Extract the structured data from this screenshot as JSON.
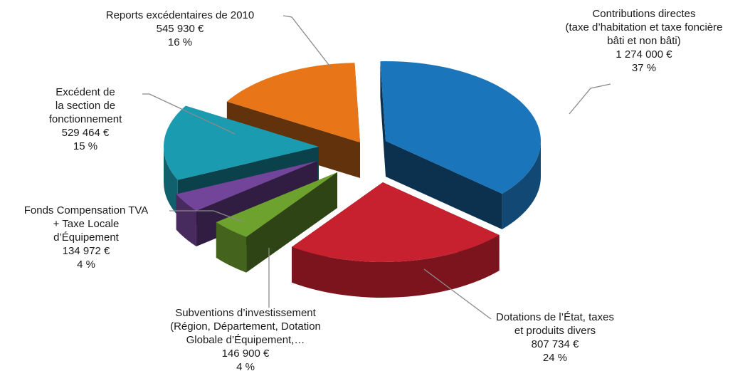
{
  "chart_data": {
    "type": "pie",
    "style": "3d-exploded",
    "slices": [
      {
        "name": "Contributions directes (taxe d'habitation et taxe foncière bâti et non bâti)",
        "label_lines": [
          "Contributions directes",
          "(taxe d’habitation et taxe foncière",
          "bâti et non bâti)"
        ],
        "amount": "1 274 000 €",
        "value": 1274000,
        "percent": "37 %",
        "color": "#1b75bb"
      },
      {
        "name": "Dotations de l'État, taxes et produits divers",
        "label_lines": [
          "Dotations de l’État, taxes",
          "et produits divers"
        ],
        "amount": "807 734 €",
        "value": 807734,
        "percent": "24 %",
        "color": "#c7202f"
      },
      {
        "name": "Subventions d'investissement (Région, Département, Dotation Globale d'Équipement,…",
        "label_lines": [
          "Subventions d’investissement",
          "(Région, Département, Dotation",
          "Globale d’Équipement,…"
        ],
        "amount": "146 900 €",
        "value": 146900,
        "percent": "4 %",
        "color": "#6ea22f"
      },
      {
        "name": "Fonds Compensation TVA + Taxe Locale d'Équipement",
        "label_lines": [
          "Fonds Compensation TVA",
          "+ Taxe Locale",
          "d’Équipement"
        ],
        "amount": "134 972 €",
        "value": 134972,
        "percent": "4 %",
        "color": "#73459a"
      },
      {
        "name": "Excédent de la section de fonctionnement",
        "label_lines": [
          "Excédent de",
          "la section de",
          "fonctionnement"
        ],
        "amount": "529 464 €",
        "value": 529464,
        "percent": "15 %",
        "color": "#1b9bb0"
      },
      {
        "name": "Reports excédentaires de 2010",
        "label_lines": [
          "Reports excédentaires de 2010"
        ],
        "amount": "545 930 €",
        "value": 545930,
        "percent": "16 %",
        "color": "#e87619"
      }
    ]
  }
}
